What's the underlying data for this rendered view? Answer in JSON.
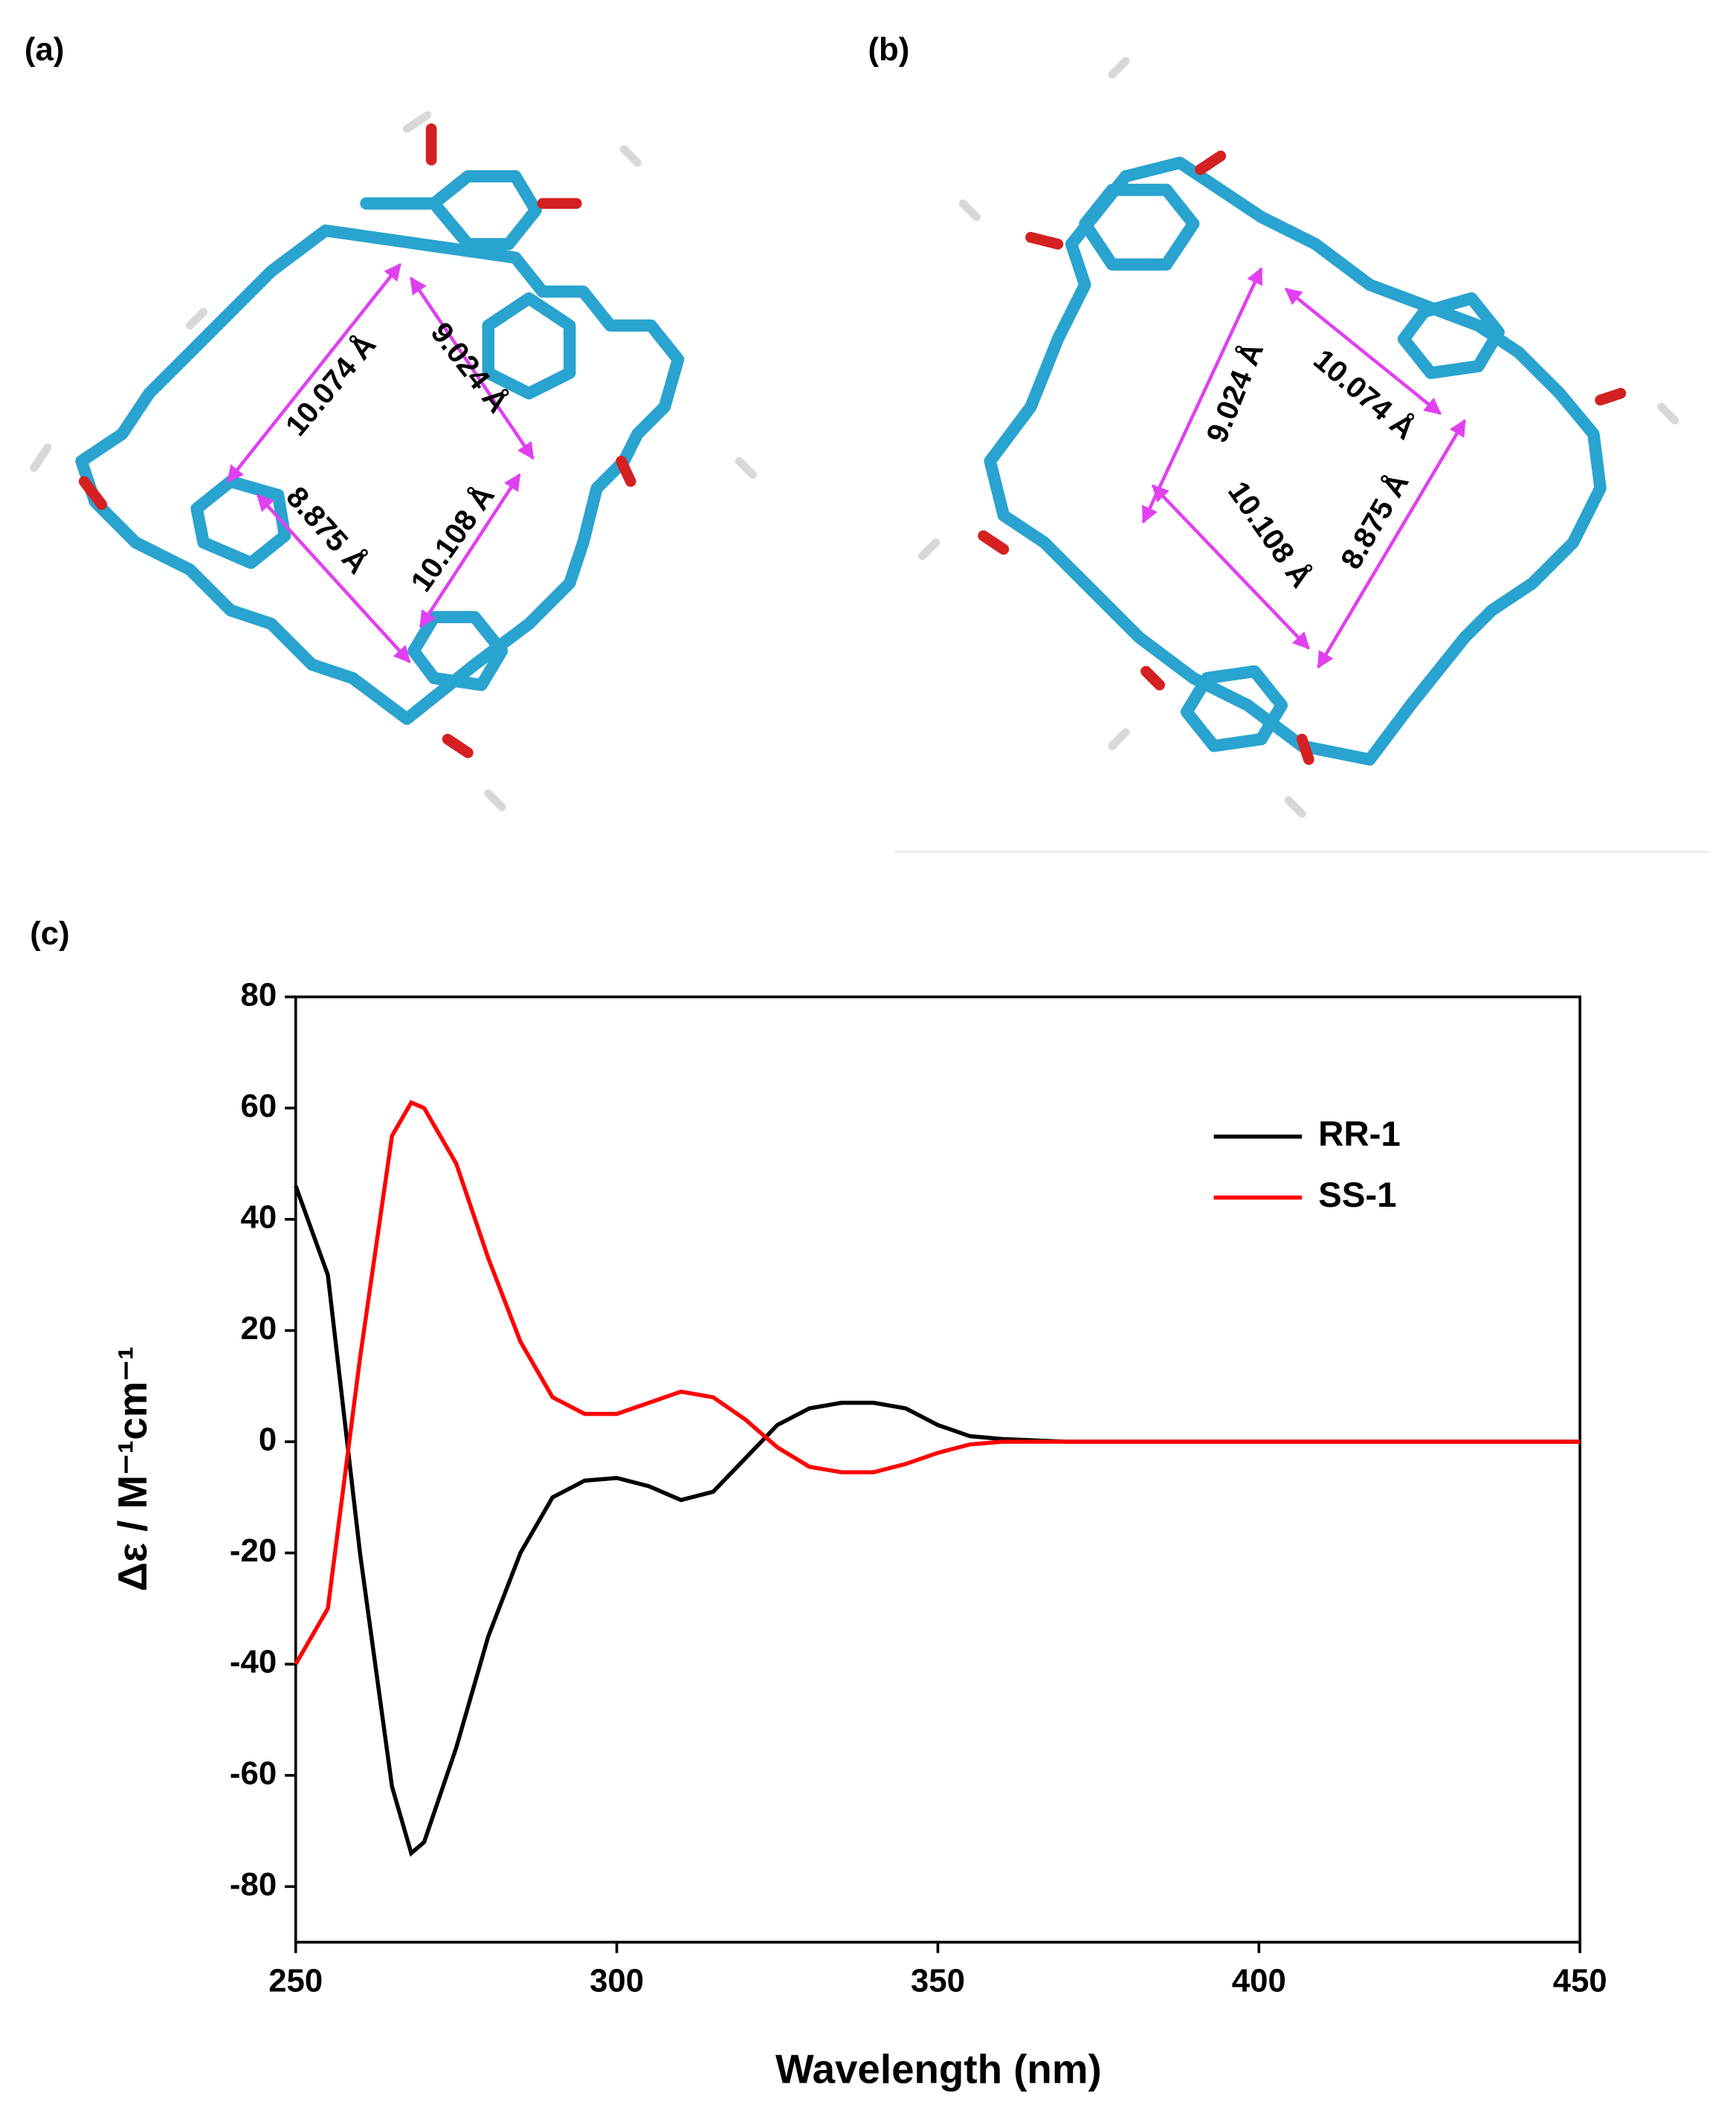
{
  "panels": [
    {
      "label": "(a)",
      "distances": [
        "10.074 Å",
        "9.024 Å",
        "8.875 Å",
        "10.108 Å"
      ]
    },
    {
      "label": "(b)",
      "distances": [
        "9.024 Å",
        "10.074 Å",
        "10.108 Å",
        "8.875 Å"
      ]
    }
  ],
  "chart_data": {
    "type": "line",
    "panel_label": "(c)",
    "x_label": "Wavelength (nm)",
    "y_label": "Δε / M⁻¹cm⁻¹",
    "x": [
      250,
      255,
      260,
      265,
      268,
      270,
      275,
      280,
      285,
      290,
      295,
      300,
      305,
      310,
      315,
      320,
      325,
      330,
      335,
      340,
      345,
      350,
      355,
      360,
      370,
      380,
      400,
      420,
      450
    ],
    "series": [
      {
        "name": "RR-1",
        "color": "#000000",
        "values": [
          46,
          30,
          -20,
          -62,
          -74,
          -72,
          -55,
          -35,
          -20,
          -10,
          -7,
          -6.5,
          -8,
          -10.5,
          -9,
          -3,
          3,
          6,
          7,
          7,
          6,
          3,
          1,
          0.5,
          0,
          0,
          0,
          0,
          0
        ]
      },
      {
        "name": "SS-1",
        "color": "#ff0000",
        "values": [
          -40,
          -30,
          15,
          55,
          61,
          60,
          50,
          33,
          18,
          8,
          5,
          5,
          7,
          9,
          8,
          4,
          -1,
          -4.5,
          -5.5,
          -5.5,
          -4,
          -2,
          -0.5,
          0,
          0,
          0,
          0,
          0,
          0
        ]
      }
    ],
    "xlim": [
      250,
      450
    ],
    "ylim": [
      -90,
      80
    ],
    "xticks": [
      250,
      300,
      350,
      400,
      450
    ],
    "yticks": [
      -80,
      -60,
      -40,
      -20,
      0,
      20,
      40,
      60,
      80
    ],
    "legend": "upper right"
  }
}
